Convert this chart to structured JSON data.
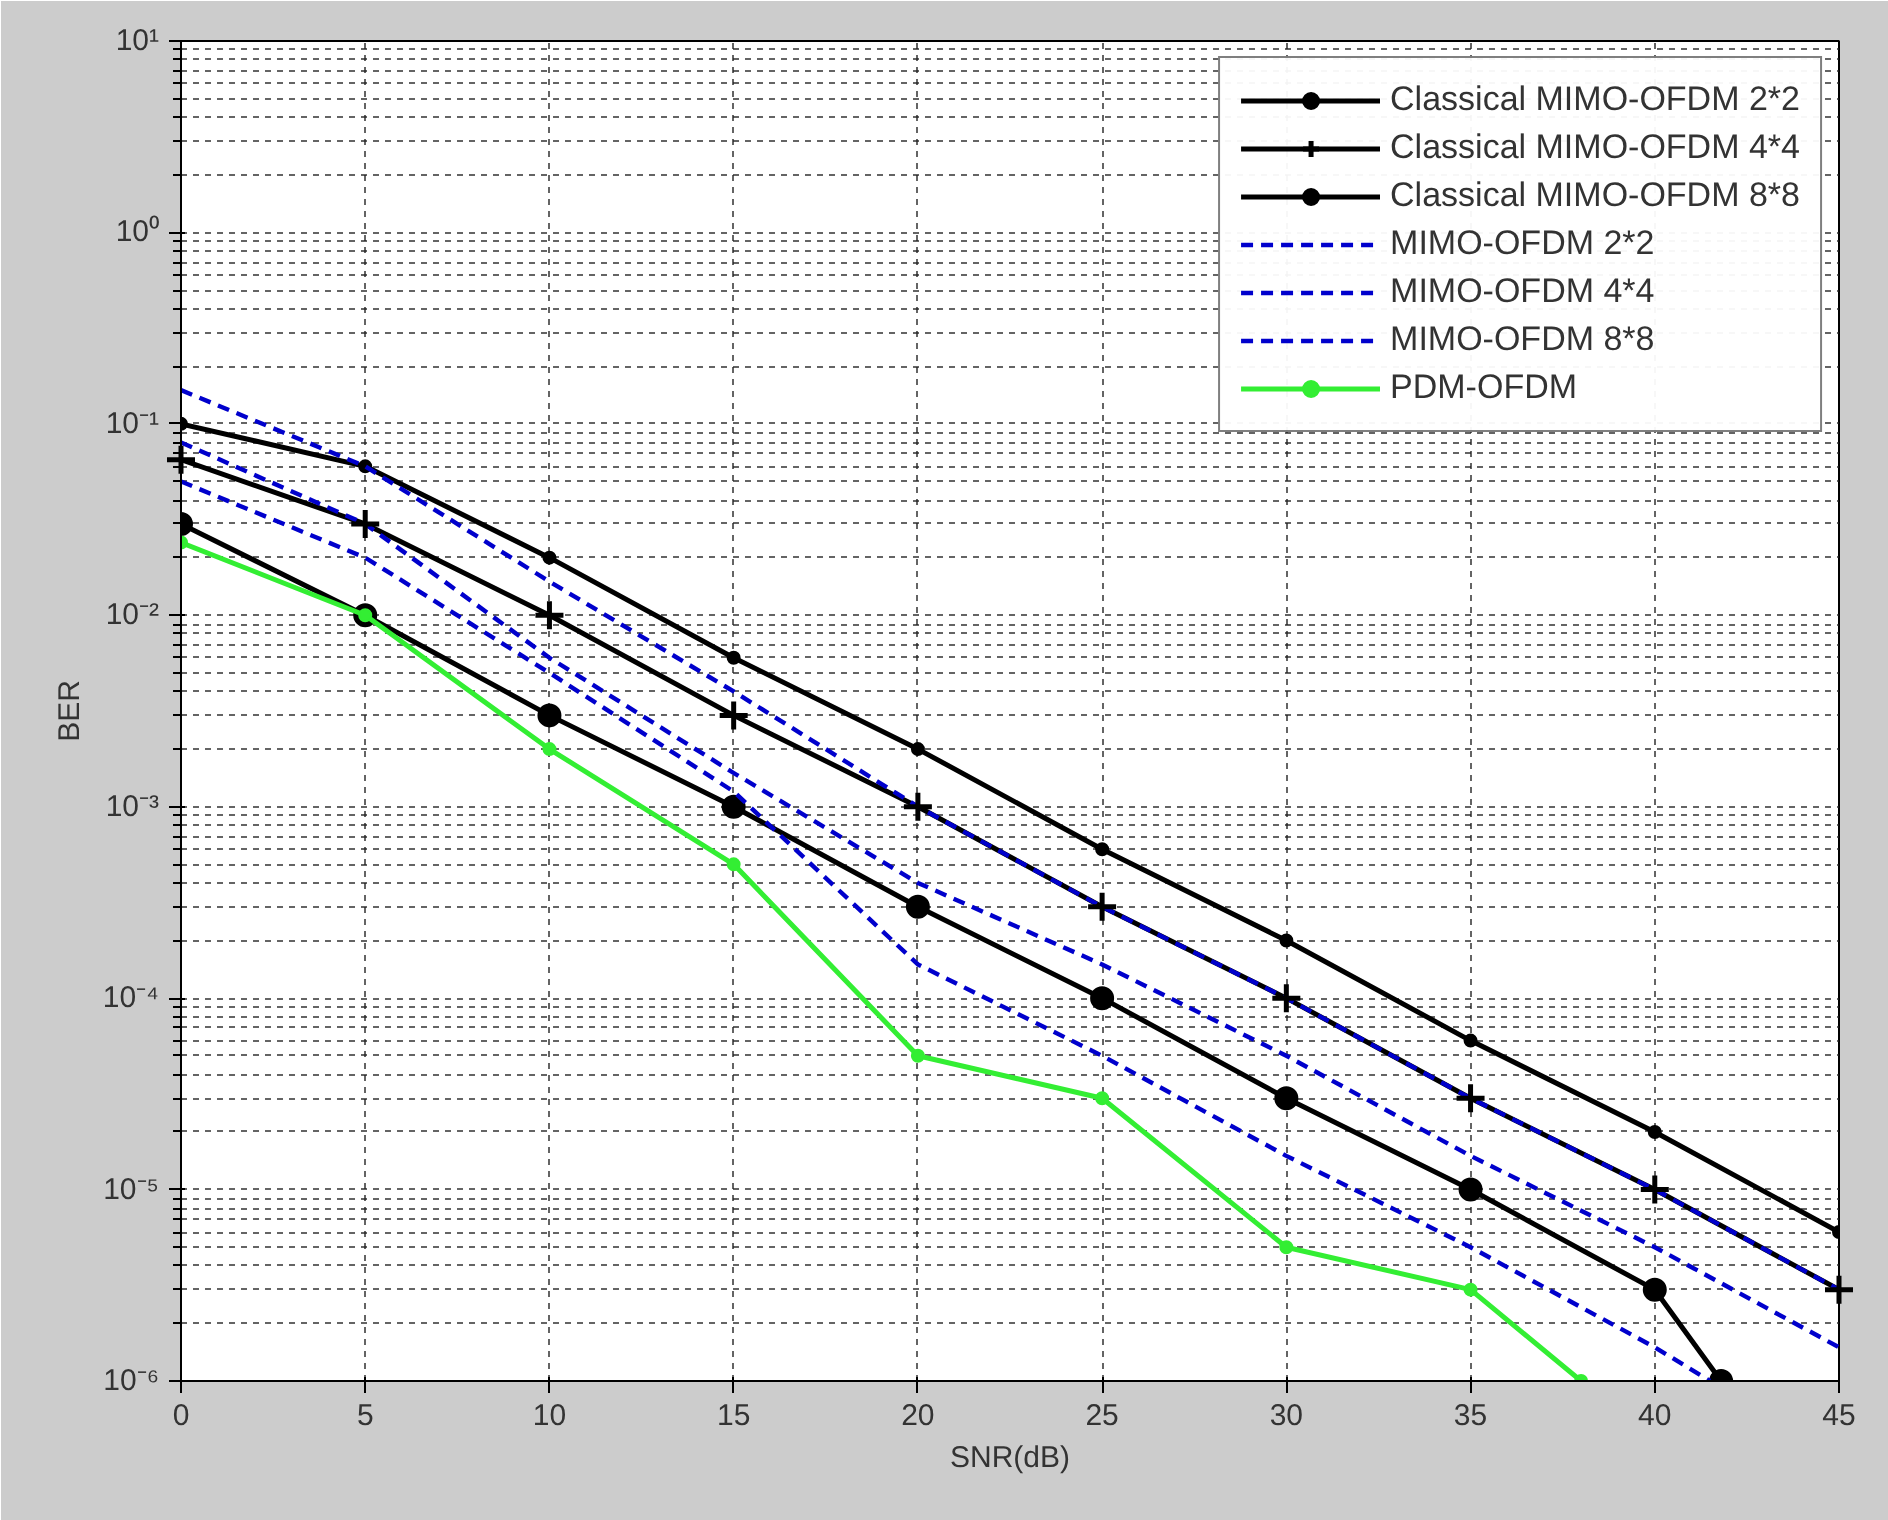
{
  "chart_data": {
    "type": "line",
    "xlabel": "SNR(dB)",
    "ylabel": "BER",
    "log": "y",
    "x": [
      0,
      5,
      10,
      15,
      20,
      25,
      30,
      35,
      40,
      45
    ],
    "xlim": [
      0,
      45
    ],
    "xticks": [
      0,
      5,
      10,
      15,
      20,
      25,
      30,
      35,
      40,
      45
    ],
    "ylim": [
      1e-06,
      10
    ],
    "yticks": [
      {
        "value": 1e-06,
        "label": "10⁻⁶"
      },
      {
        "value": 1e-05,
        "label": "10⁻⁵"
      },
      {
        "value": 0.0001,
        "label": "10⁻⁴"
      },
      {
        "value": 0.001,
        "label": "10⁻³"
      },
      {
        "value": 0.01,
        "label": "10⁻²"
      },
      {
        "value": 0.1,
        "label": "10⁻¹"
      },
      {
        "value": 1,
        "label": "10⁰"
      },
      {
        "value": 10,
        "label": "10¹"
      }
    ],
    "grid": true,
    "legend": "top right",
    "series": [
      {
        "name": "Classical MIMO-OFDM 2*2",
        "color": "#000000",
        "marker": "circle",
        "line_style": "solid",
        "values": [
          0.1,
          0.06,
          0.02,
          0.006,
          0.002,
          0.0006,
          0.0002,
          6e-05,
          2e-05,
          6e-06
        ]
      },
      {
        "name": "Classical MIMO-OFDM 4*4",
        "color": "#000000",
        "marker": "cross",
        "line_style": "solid",
        "values": [
          0.065,
          0.03,
          0.01,
          0.003,
          0.001,
          0.0003,
          0.0001,
          3e-05,
          1e-05,
          3e-06
        ]
      },
      {
        "name": "Classical MIMO-OFDM 8*8",
        "color": "#000000",
        "marker": "circle",
        "line_style": "solid",
        "x": [
          0,
          5,
          10,
          15,
          20,
          25,
          30,
          35,
          40,
          41.8
        ],
        "values": [
          0.03,
          0.01,
          0.003,
          0.001,
          0.0003,
          0.0001,
          3e-05,
          1e-05,
          3e-06,
          1e-06
        ]
      },
      {
        "name": "MIMO-OFDM 2*2",
        "color": "#0000cc",
        "marker": "none",
        "line_style": "dashed",
        "values": [
          0.15,
          0.06,
          0.015,
          0.004,
          0.001,
          0.0003,
          0.0001,
          3e-05,
          1e-05,
          3e-06
        ]
      },
      {
        "name": "MIMO-OFDM 4*4",
        "color": "#0000cc",
        "marker": "none",
        "line_style": "dashed",
        "values": [
          0.08,
          0.03,
          0.006,
          0.0015,
          0.0004,
          0.00015,
          5e-05,
          1.5e-05,
          5e-06,
          1.5e-06
        ]
      },
      {
        "name": "MIMO-OFDM 8*8",
        "color": "#0000cc",
        "marker": "none",
        "line_style": "dashed",
        "x": [
          0,
          5,
          10,
          15,
          20,
          25,
          30,
          35,
          40,
          41.5
        ],
        "values": [
          0.05,
          0.02,
          0.005,
          0.0012,
          0.00015,
          5e-05,
          1.5e-05,
          5e-06,
          1.5e-06,
          1e-06
        ]
      },
      {
        "name": "PDM-OFDM",
        "color": "#33ee33",
        "marker": "circle",
        "line_style": "solid",
        "x": [
          0,
          5,
          10,
          15,
          20,
          25,
          30,
          35,
          38
        ],
        "values": [
          0.024,
          0.01,
          0.002,
          0.0005,
          5e-05,
          3e-05,
          5e-06,
          3e-06,
          1e-06
        ]
      }
    ]
  }
}
